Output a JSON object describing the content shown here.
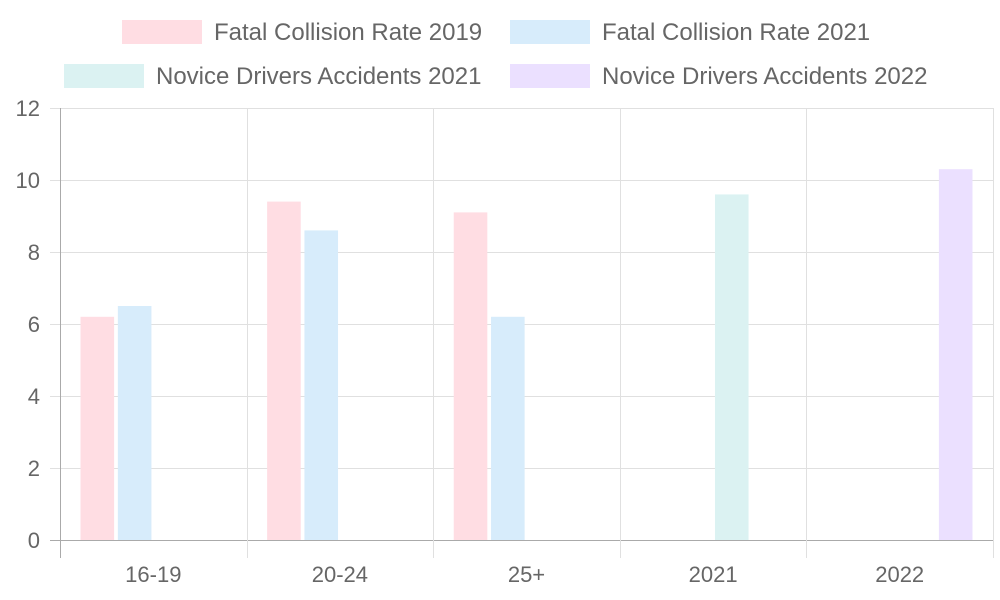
{
  "chart_data": {
    "type": "bar",
    "categories": [
      "16-19",
      "20-24",
      "25+",
      "2021",
      "2022"
    ],
    "series": [
      {
        "name": "Fatal Collision Rate 2019",
        "values": [
          6.2,
          9.4,
          9.1,
          null,
          null
        ],
        "color": "#ffdde3",
        "border": "#ffdde3"
      },
      {
        "name": "Fatal Collision Rate 2021",
        "values": [
          6.5,
          8.6,
          6.2,
          null,
          null
        ],
        "color": "#d7ecfb",
        "border": "#d7ecfb"
      },
      {
        "name": "Novice Drivers Accidents 2021",
        "values": [
          null,
          null,
          null,
          9.6,
          null
        ],
        "color": "#dbf2f2",
        "border": "#dbf2f2"
      },
      {
        "name": "Novice Drivers Accidents 2022",
        "values": [
          null,
          null,
          null,
          null,
          10.3
        ],
        "color": "#ebe0ff",
        "border": "#ebe0ff"
      }
    ],
    "ylim": [
      0,
      12
    ],
    "yticks": [
      0,
      2,
      4,
      6,
      8,
      10,
      12
    ],
    "grid": true,
    "legend": "top"
  }
}
